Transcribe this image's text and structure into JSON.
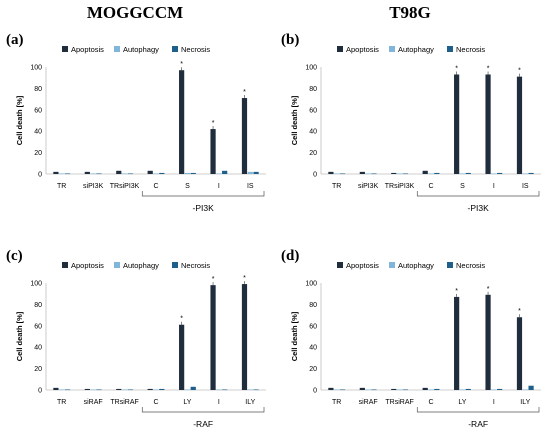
{
  "figure": {
    "columns": [
      {
        "title": "MOGGCCM"
      },
      {
        "title": "T98G"
      }
    ],
    "colors": {
      "Apoptosis": "#1f2d3d",
      "Autophagy": "#7fb6d9",
      "Necrosis": "#1f5f8b"
    }
  },
  "chart_data": [
    {
      "panel": "(a)",
      "type": "bar",
      "categories": [
        "TR",
        "siPI3K",
        "TRsiPI3K",
        "C",
        "S",
        "I",
        "IS"
      ],
      "series": [
        {
          "name": "Apoptosis",
          "values": [
            2,
            2,
            3,
            3,
            97,
            42,
            71
          ]
        },
        {
          "name": "Autophagy",
          "values": [
            0.5,
            0.5,
            0.5,
            0.5,
            1,
            0.5,
            2
          ]
        },
        {
          "name": "Necrosis",
          "values": [
            0.5,
            0.5,
            0.5,
            1,
            1,
            3,
            2
          ]
        }
      ],
      "significance": [
        "",
        "",
        "",
        "",
        "*",
        "*",
        "*"
      ],
      "ylabel": "Cell death [%]",
      "ylim": [
        0,
        100
      ],
      "yticks": [
        0,
        20,
        40,
        60,
        80,
        100
      ],
      "group": {
        "label": "-PI3K",
        "from": 3,
        "to": 6
      },
      "legend": "top"
    },
    {
      "panel": "(b)",
      "type": "bar",
      "categories": [
        "TR",
        "siPI3K",
        "TRsiPI3K",
        "C",
        "S",
        "I",
        "IS"
      ],
      "series": [
        {
          "name": "Apoptosis",
          "values": [
            2,
            2,
            1,
            3,
            93,
            93,
            91
          ]
        },
        {
          "name": "Autophagy",
          "values": [
            0.5,
            0.5,
            0.5,
            0.5,
            0.5,
            0.5,
            0.5
          ]
        },
        {
          "name": "Necrosis",
          "values": [
            0.5,
            0.5,
            0.5,
            1,
            1,
            1,
            1
          ]
        }
      ],
      "significance": [
        "",
        "",
        "",
        "",
        "*",
        "*",
        "*"
      ],
      "ylabel": "Cell death [%]",
      "ylim": [
        0,
        100
      ],
      "yticks": [
        0,
        20,
        40,
        60,
        80,
        100
      ],
      "group": {
        "label": "-PI3K",
        "from": 3,
        "to": 6
      },
      "legend": "top"
    },
    {
      "panel": "(c)",
      "type": "bar",
      "categories": [
        "TR",
        "siRAF",
        "TRsiRAF",
        "C",
        "LY",
        "I",
        "ILY"
      ],
      "series": [
        {
          "name": "Apoptosis",
          "values": [
            2,
            1,
            1,
            1,
            61,
            98,
            99
          ]
        },
        {
          "name": "Autophagy",
          "values": [
            0.5,
            0.5,
            0.5,
            0.5,
            0.5,
            0.5,
            0.5
          ]
        },
        {
          "name": "Necrosis",
          "values": [
            0.5,
            0.5,
            0.5,
            1,
            3,
            0.5,
            0.5
          ]
        }
      ],
      "significance": [
        "",
        "",
        "",
        "",
        "*",
        "*",
        "*"
      ],
      "ylabel": "Cell death [%]",
      "ylim": [
        0,
        100
      ],
      "yticks": [
        0,
        20,
        40,
        60,
        80,
        100
      ],
      "group": {
        "label": "-RAF",
        "from": 3,
        "to": 6
      },
      "legend": "top"
    },
    {
      "panel": "(d)",
      "type": "bar",
      "categories": [
        "TR",
        "siRAF",
        "TRsiRAF",
        "C",
        "LY",
        "I",
        "ILY"
      ],
      "series": [
        {
          "name": "Apoptosis",
          "values": [
            2,
            2,
            1,
            2,
            87,
            89,
            68
          ]
        },
        {
          "name": "Autophagy",
          "values": [
            0.5,
            0.5,
            0.5,
            0.5,
            0.5,
            0.5,
            0.5
          ]
        },
        {
          "name": "Necrosis",
          "values": [
            0.5,
            0.5,
            0.5,
            1,
            1,
            1,
            4
          ]
        }
      ],
      "significance": [
        "",
        "",
        "",
        "",
        "*",
        "*",
        "*"
      ],
      "ylabel": "Cell death [%]",
      "ylim": [
        0,
        100
      ],
      "yticks": [
        0,
        20,
        40,
        60,
        80,
        100
      ],
      "group": {
        "label": "-RAF",
        "from": 3,
        "to": 6
      },
      "legend": "top"
    }
  ]
}
